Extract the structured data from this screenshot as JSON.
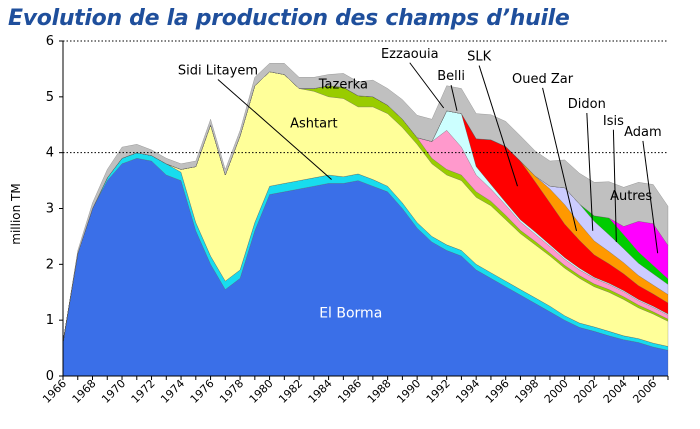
{
  "chart_data": {
    "type": "area",
    "stacked": true,
    "title": "Evolution de la production des champs d’huile",
    "ylabel": "million TM",
    "ylim": [
      0,
      6
    ],
    "yticks": [
      "0",
      "1",
      "2",
      "3",
      "4",
      "5",
      "6"
    ],
    "gridlines_dotted_at": [
      4,
      6
    ],
    "x": [
      1966,
      1967,
      1968,
      1969,
      1970,
      1971,
      1972,
      1973,
      1974,
      1975,
      1976,
      1977,
      1978,
      1979,
      1980,
      1981,
      1982,
      1983,
      1984,
      1985,
      1986,
      1987,
      1988,
      1989,
      1990,
      1991,
      1992,
      1993,
      1994,
      1995,
      1996,
      1997,
      1998,
      1999,
      2000,
      2001,
      2002,
      2003,
      2004,
      2005,
      2006,
      2007
    ],
    "xtick_labels": [
      "1966",
      "1968",
      "1970",
      "1972",
      "1974",
      "1976",
      "1978",
      "1980",
      "1982",
      "1984",
      "1986",
      "1988",
      "1990",
      "1992",
      "1994",
      "1996",
      "1998",
      "2000",
      "2002",
      "2004",
      "2006"
    ],
    "series": [
      {
        "name": "El Borma",
        "color": "#3a6fe8",
        "values": [
          0.6,
          2.2,
          3.0,
          3.5,
          3.8,
          3.9,
          3.85,
          3.6,
          3.5,
          2.6,
          2.0,
          1.55,
          1.75,
          2.6,
          3.25,
          3.3,
          3.35,
          3.4,
          3.45,
          3.45,
          3.5,
          3.4,
          3.3,
          3.0,
          2.65,
          2.4,
          2.25,
          2.15,
          1.9,
          1.75,
          1.6,
          1.45,
          1.3,
          1.15,
          1.0,
          0.87,
          0.8,
          0.72,
          0.65,
          0.6,
          0.52,
          0.46
        ]
      },
      {
        "values": [
          0,
          0,
          0,
          0.05,
          0.1,
          0.1,
          0.1,
          0.2,
          0.15,
          0.15,
          0.15,
          0.15,
          0.15,
          0.15,
          0.15,
          0.15,
          0.15,
          0.15,
          0.15,
          0.12,
          0.12,
          0.12,
          0.1,
          0.1,
          0.1,
          0.1,
          0.1,
          0.1,
          0.1,
          0.1,
          0.1,
          0.1,
          0.1,
          0.1,
          0.08,
          0.08,
          0.08,
          0.08,
          0.07,
          0.07,
          0.07,
          0.07
        ],
        "color": "#18dcee"
      },
      {
        "name": "Sidi Litayem",
        "color": "#ffff99",
        "values": [
          0,
          0,
          0,
          0,
          0,
          0,
          0,
          0,
          0,
          0,
          0,
          0,
          0,
          0,
          0,
          0,
          0,
          0,
          0,
          0,
          0,
          0,
          0,
          0,
          0,
          0,
          0,
          0,
          0,
          0,
          0,
          0,
          0,
          0,
          0,
          0,
          0,
          0,
          0,
          0,
          0,
          0
        ]
      },
      {
        "name": "Ashtart",
        "color": "#ffff99",
        "values": [
          0,
          0,
          0,
          0,
          0,
          0,
          0,
          0,
          0.05,
          1.0,
          2.35,
          1.9,
          2.4,
          2.45,
          2.05,
          1.95,
          1.65,
          1.55,
          1.4,
          1.4,
          1.2,
          1.3,
          1.3,
          1.35,
          1.4,
          1.3,
          1.25,
          1.25,
          1.2,
          1.2,
          1.1,
          1.0,
          0.95,
          0.9,
          0.85,
          0.8,
          0.72,
          0.7,
          0.65,
          0.55,
          0.52,
          0.45
        ]
      },
      {
        "name": "Tazerka",
        "color": "#99cc00",
        "values": [
          0,
          0,
          0,
          0,
          0,
          0,
          0,
          0,
          0,
          0,
          0,
          0,
          0,
          0,
          0,
          0,
          0,
          0.05,
          0.2,
          0.2,
          0.2,
          0.18,
          0.15,
          0.15,
          0.12,
          0.1,
          0.1,
          0.1,
          0.1,
          0.08,
          0.08,
          0.06,
          0.06,
          0.05,
          0.05,
          0.05,
          0.05,
          0.05,
          0.05,
          0.05,
          0.04,
          0.04
        ]
      },
      {
        "name": "Ezzaouia",
        "color": "#ff99cc",
        "values": [
          0,
          0,
          0,
          0,
          0,
          0,
          0,
          0,
          0,
          0,
          0,
          0,
          0,
          0,
          0,
          0,
          0,
          0,
          0,
          0,
          0,
          0,
          0,
          0,
          0,
          0.3,
          0.7,
          0.5,
          0.3,
          0.22,
          0.18,
          0.15,
          0.13,
          0.12,
          0.11,
          0.1,
          0.1,
          0.09,
          0.09,
          0.08,
          0.08,
          0.07
        ]
      },
      {
        "name": "Belli",
        "color": "#ccffff",
        "values": [
          0,
          0,
          0,
          0,
          0,
          0,
          0,
          0,
          0,
          0,
          0,
          0,
          0,
          0,
          0,
          0,
          0,
          0,
          0,
          0,
          0,
          0,
          0,
          0,
          0,
          0,
          0.35,
          0.6,
          0.15,
          0.08,
          0.05,
          0.04,
          0.04,
          0.03,
          0.03,
          0.03,
          0.02,
          0.02,
          0.02,
          0.02,
          0.02,
          0.02
        ]
      },
      {
        "name": "SLK",
        "color": "#ff0000",
        "values": [
          0,
          0,
          0,
          0,
          0,
          0,
          0,
          0,
          0,
          0,
          0,
          0,
          0,
          0,
          0,
          0,
          0,
          0,
          0,
          0,
          0,
          0,
          0,
          0,
          0,
          0,
          0,
          0,
          0.5,
          0.8,
          1.0,
          1.05,
          0.9,
          0.75,
          0.6,
          0.5,
          0.4,
          0.35,
          0.3,
          0.25,
          0.22,
          0.2
        ]
      },
      {
        "name": "Oued Zar",
        "color": "#ff9900",
        "values": [
          0,
          0,
          0,
          0,
          0,
          0,
          0,
          0,
          0,
          0,
          0,
          0,
          0,
          0,
          0,
          0,
          0,
          0,
          0,
          0,
          0,
          0,
          0,
          0,
          0,
          0,
          0,
          0,
          0,
          0,
          0,
          0,
          0.1,
          0.25,
          0.35,
          0.3,
          0.25,
          0.22,
          0.2,
          0.18,
          0.16,
          0.15
        ]
      },
      {
        "name": "Didon",
        "color": "#ccccff",
        "values": [
          0,
          0,
          0,
          0,
          0,
          0,
          0,
          0,
          0,
          0,
          0,
          0,
          0,
          0,
          0,
          0,
          0,
          0,
          0,
          0,
          0,
          0,
          0,
          0,
          0,
          0,
          0,
          0,
          0,
          0,
          0,
          0,
          0,
          0.05,
          0.3,
          0.35,
          0.35,
          0.3,
          0.25,
          0.22,
          0.2,
          0.18
        ]
      },
      {
        "name": "Isis",
        "color": "#00cc00",
        "values": [
          0,
          0,
          0,
          0,
          0,
          0,
          0,
          0,
          0,
          0,
          0,
          0,
          0,
          0,
          0,
          0,
          0,
          0,
          0,
          0,
          0,
          0,
          0,
          0,
          0,
          0,
          0,
          0,
          0,
          0,
          0,
          0,
          0,
          0,
          0,
          0,
          0.1,
          0.3,
          0.25,
          0.2,
          0.15,
          0.1
        ]
      },
      {
        "name": "Adam",
        "color": "#ff00ff",
        "values": [
          0,
          0,
          0,
          0,
          0,
          0,
          0,
          0,
          0,
          0,
          0,
          0,
          0,
          0,
          0,
          0,
          0,
          0,
          0,
          0,
          0,
          0,
          0,
          0,
          0,
          0,
          0,
          0,
          0,
          0,
          0,
          0,
          0,
          0,
          0,
          0,
          0,
          0,
          0.15,
          0.55,
          0.75,
          0.6
        ]
      },
      {
        "name": "Autres",
        "color": "#c0c0c0",
        "values": [
          0,
          0.05,
          0.1,
          0.15,
          0.2,
          0.15,
          0.1,
          0.1,
          0.1,
          0.1,
          0.1,
          0.1,
          0.1,
          0.15,
          0.15,
          0.2,
          0.2,
          0.2,
          0.2,
          0.25,
          0.25,
          0.3,
          0.3,
          0.35,
          0.4,
          0.4,
          0.45,
          0.45,
          0.45,
          0.45,
          0.45,
          0.45,
          0.45,
          0.45,
          0.5,
          0.55,
          0.6,
          0.65,
          0.7,
          0.7,
          0.7,
          0.7
        ]
      }
    ],
    "annotations": [
      "Sidi Litayem",
      "Ashtart",
      "Tazerka",
      "Ezzaouia",
      "Belli",
      "SLK",
      "Oued Zar",
      "Didon",
      "Isis",
      "Adam",
      "Autres",
      "El Borma"
    ],
    "legend": "none"
  }
}
